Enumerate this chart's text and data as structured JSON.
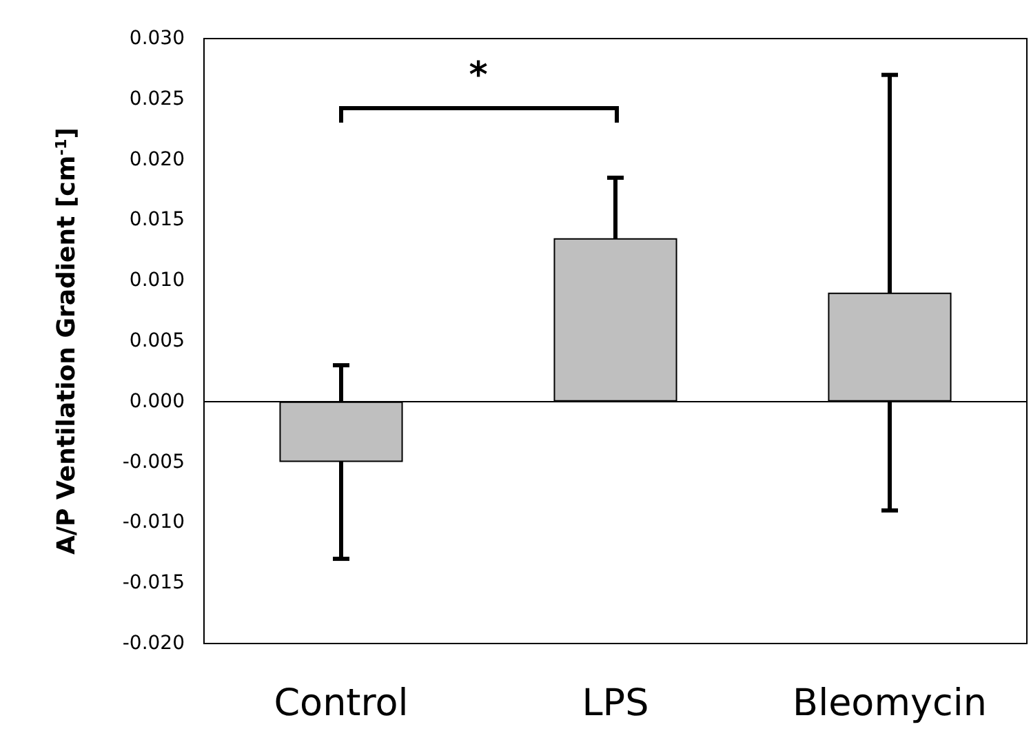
{
  "chart_data": {
    "type": "bar",
    "ylabel": "A/P Ventilation Gradient [cm$^{-1}$]",
    "categories": [
      "Control",
      "LPS",
      "Bleomycin"
    ],
    "values": [
      -0.005,
      0.0135,
      0.009
    ],
    "errors": [
      0.008,
      0.005,
      0.018
    ],
    "color": "#bfbfbf",
    "ylim": [
      -0.02,
      0.03
    ],
    "yticks": [
      {
        "value": -0.02,
        "label": "-0.020"
      },
      {
        "value": -0.015,
        "label": "-0.015"
      },
      {
        "value": -0.01,
        "label": "-0.010"
      },
      {
        "value": -0.005,
        "label": "-0.005"
      },
      {
        "value": 0,
        "label": "0.000"
      },
      {
        "value": 0.005,
        "label": "0.005"
      },
      {
        "value": 0.01,
        "label": "0.010"
      },
      {
        "value": 0.015,
        "label": "0.015"
      },
      {
        "value": 0.02,
        "label": "0.020"
      },
      {
        "value": 0.025,
        "label": "0.025"
      },
      {
        "value": 0.03,
        "label": "0.030"
      }
    ],
    "annotations": [
      "*"
    ],
    "grid": false
  }
}
